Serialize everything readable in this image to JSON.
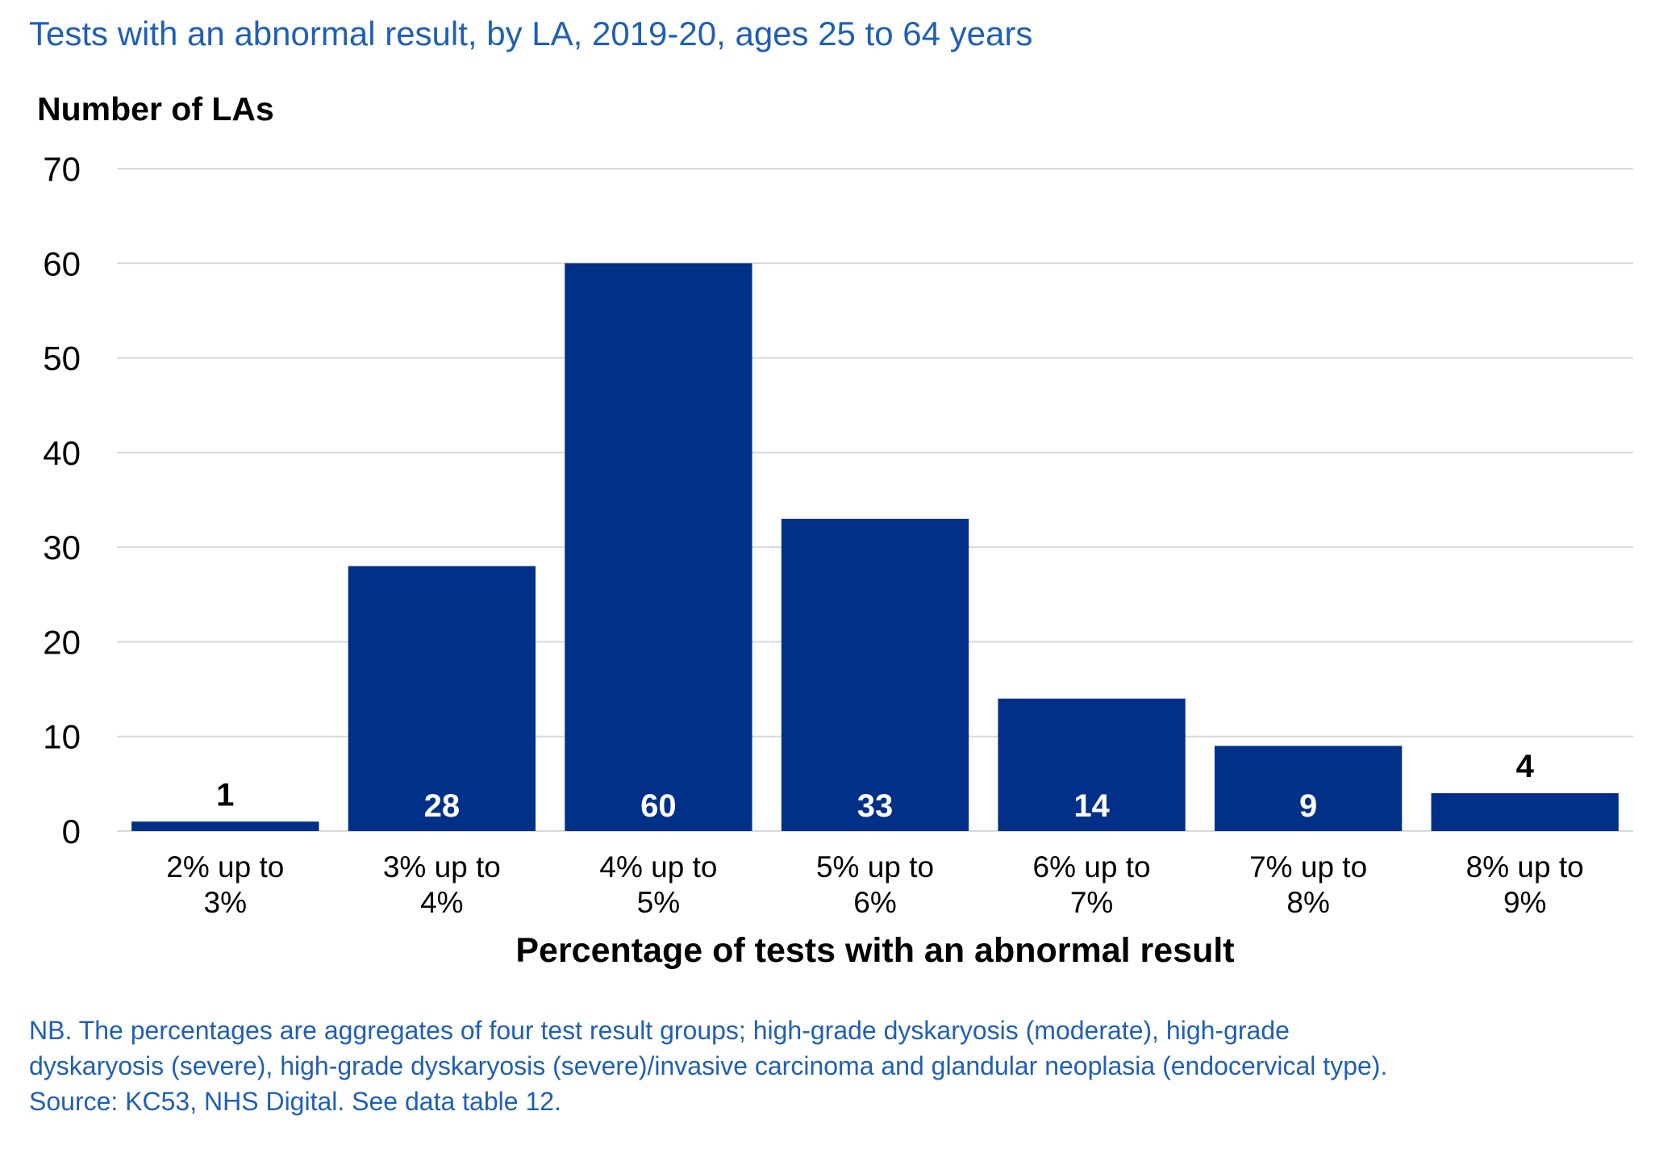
{
  "chart_data": {
    "type": "bar",
    "title": "Tests with an abnormal result, by LA, 2019-20, ages 25 to 64 years",
    "ylabel": "Number of LAs",
    "xlabel": "Percentage of tests with an abnormal result",
    "categories": [
      [
        "2% up to",
        "3%"
      ],
      [
        "3% up to",
        "4%"
      ],
      [
        "4% up to",
        "5%"
      ],
      [
        "5% up to",
        "6%"
      ],
      [
        "6% up to",
        "7%"
      ],
      [
        "7% up to",
        "8%"
      ],
      [
        "8% up to",
        "9%"
      ]
    ],
    "values": [
      1,
      28,
      60,
      33,
      14,
      9,
      4
    ],
    "data_labels": [
      "1",
      "28",
      "60",
      "33",
      "14",
      "9",
      "4"
    ],
    "ylim": [
      0,
      70
    ],
    "yticks": [
      0,
      10,
      20,
      30,
      40,
      50,
      60,
      70
    ],
    "grid": true,
    "bar_color": "#003087",
    "gridline_color": "#d9d9d9"
  },
  "notes": [
    "NB. The percentages are aggregates of four test result groups; high-grade dyskaryosis (moderate), high-grade",
    "dyskaryosis (severe), high-grade dyskaryosis (severe)/invasive carcinoma and glandular neoplasia (endocervical type).",
    "Source: KC53, NHS Digital. See data table 12."
  ]
}
